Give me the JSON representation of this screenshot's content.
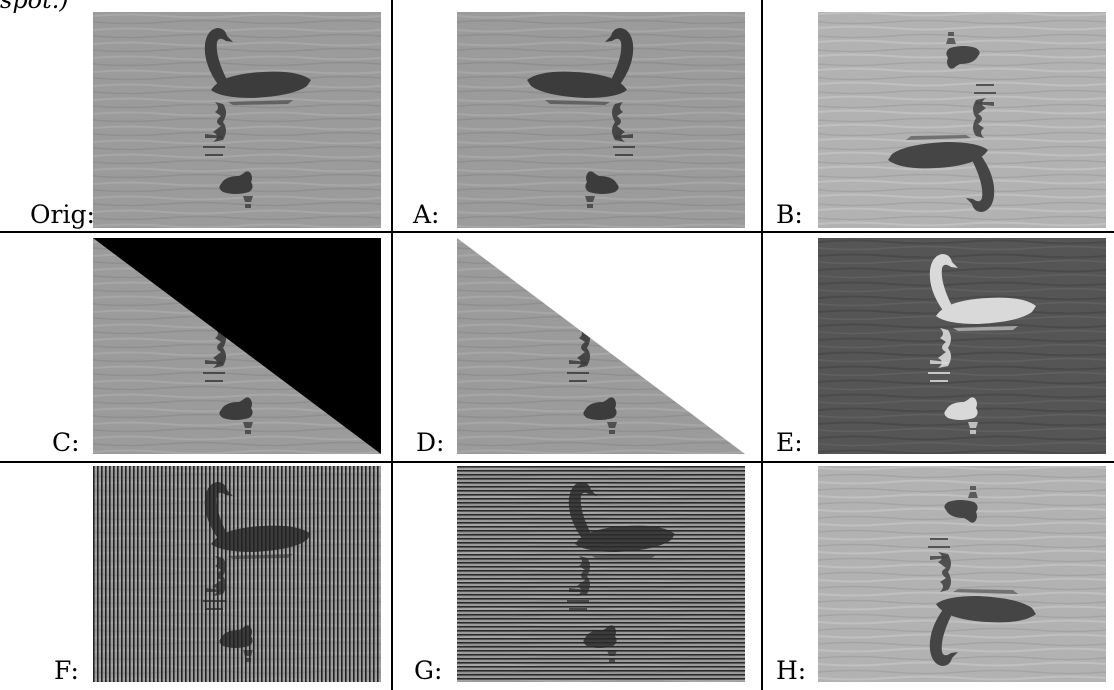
{
  "caption_fragment": "spot.)",
  "panels": [
    {
      "label": "Orig:",
      "transform": "original"
    },
    {
      "label": "A:",
      "transform": "horizontal flip"
    },
    {
      "label": "B:",
      "transform": "rotation 180"
    },
    {
      "label": "C:",
      "transform": "black triangle occlusion"
    },
    {
      "label": "D:",
      "transform": "white triangle occlusion"
    },
    {
      "label": "E:",
      "transform": "negative"
    },
    {
      "label": "F:",
      "transform": "vertical stripes"
    },
    {
      "label": "G:",
      "transform": "horizontal stripes"
    },
    {
      "label": "H:",
      "transform": "vertical flip"
    }
  ],
  "colors": {
    "water": "#9a9a9a",
    "bird": "#3c3c3c",
    "negative_water": "#555555",
    "negative_bird": "#d8d8d8"
  }
}
